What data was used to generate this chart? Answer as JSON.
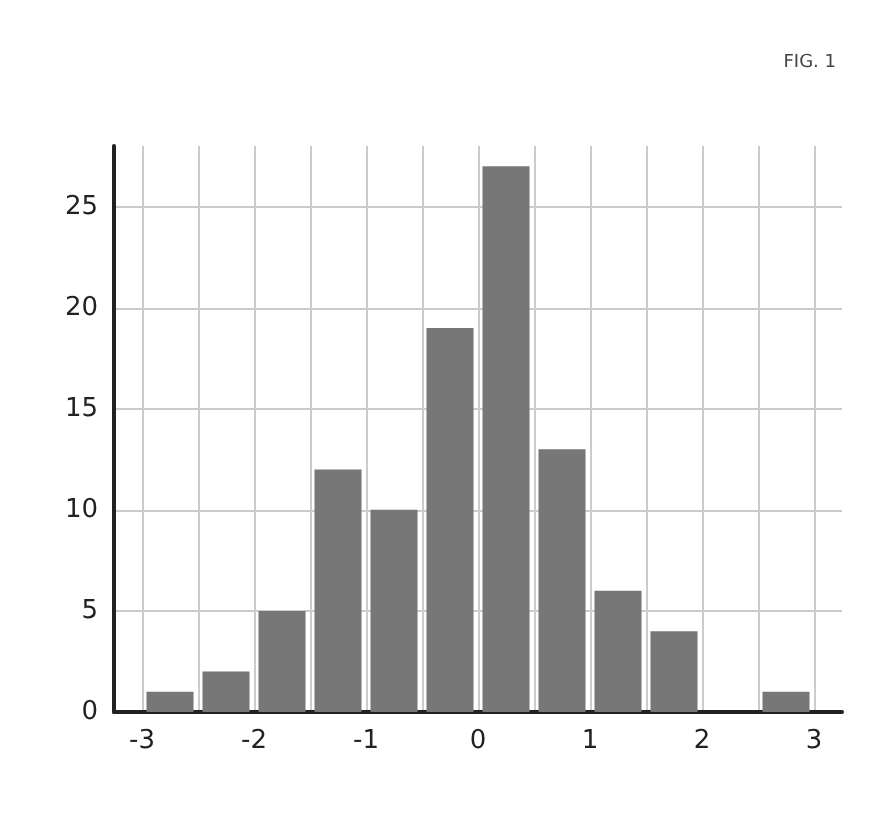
{
  "chart_data": {
    "type": "histogram",
    "title": "FIG. 1",
    "bins": [
      -3,
      -2.5,
      -2,
      -1.5,
      -1,
      -0.5,
      0,
      0.5,
      1,
      1.5,
      2,
      2.5,
      3
    ],
    "values": [
      1,
      2,
      5,
      12,
      10,
      19,
      27,
      13,
      6,
      4,
      0,
      1
    ],
    "color": "#777777",
    "xlim": [
      -3.25,
      3.25
    ],
    "xticks": [
      -3,
      {
        "value": -2.5,
        "label": null
      },
      -2,
      {
        "value": -1.5,
        "label": null
      },
      -1,
      {
        "value": -0.5,
        "label": null
      },
      0,
      {
        "value": 0.5,
        "label": null
      },
      1,
      {
        "value": 1.5,
        "label": null
      },
      2,
      {
        "value": 2.5,
        "label": null
      },
      3
    ],
    "ylim": [
      0,
      28
    ],
    "yticks": [
      0,
      5,
      10,
      15,
      20,
      25
    ],
    "grid": true
  }
}
